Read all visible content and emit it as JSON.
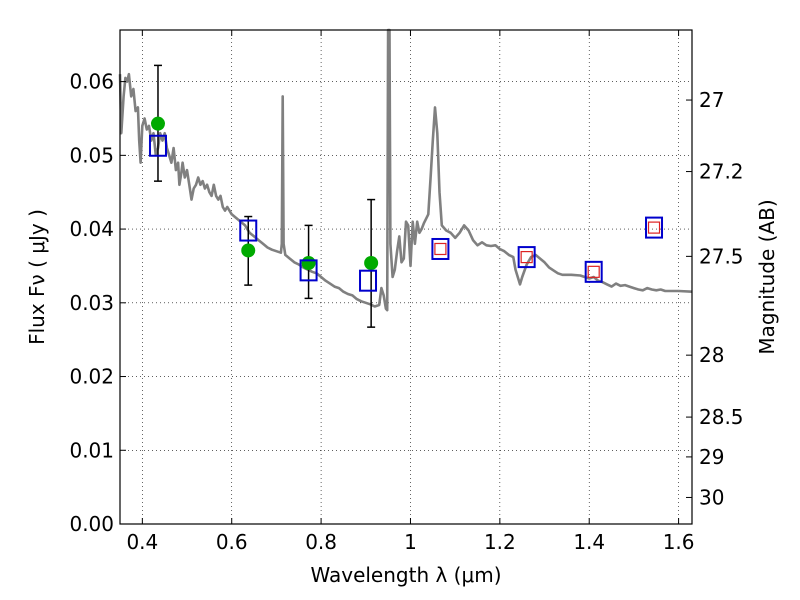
{
  "chart_data": {
    "type": "scatter",
    "xlabel": "Wavelength  λ (μm)",
    "ylabel": "Flux  Fν  ( μJy )",
    "ylabel_right": "Magnitude (AB)",
    "xlim": [
      0.35,
      1.63
    ],
    "ylim": [
      0.0,
      0.067
    ],
    "grid": true,
    "x_ticks": [
      0.4,
      0.6,
      0.8,
      1.0,
      1.2,
      1.4,
      1.6
    ],
    "x_tick_labels": [
      "0.4",
      "0.6",
      "0.8",
      "1",
      "1.2",
      "1.4",
      "1.6"
    ],
    "y_ticks": [
      0.0,
      0.01,
      0.02,
      0.03,
      0.04,
      0.05,
      0.06
    ],
    "y_tick_labels": [
      "0.00",
      "0.01",
      "0.02",
      "0.03",
      "0.04",
      "0.05",
      "0.06"
    ],
    "right_ticks": [
      {
        "label": "27",
        "flux": 0.0575
      },
      {
        "label": "27.2",
        "flux": 0.0478
      },
      {
        "label": "27.5",
        "flux": 0.0363
      },
      {
        "label": "28",
        "flux": 0.0229
      },
      {
        "label": "28.5",
        "flux": 0.0145
      },
      {
        "label": "29",
        "flux": 0.0091
      },
      {
        "label": "30",
        "flux": 0.0036
      }
    ],
    "series": [
      {
        "kind": "model_spectrum",
        "color": "#808080",
        "points": [
          [
            0.35,
            0.061
          ],
          [
            0.353,
            0.053
          ],
          [
            0.358,
            0.058
          ],
          [
            0.362,
            0.0605
          ],
          [
            0.366,
            0.06
          ],
          [
            0.37,
            0.061
          ],
          [
            0.375,
            0.058
          ],
          [
            0.38,
            0.059
          ],
          [
            0.385,
            0.056
          ],
          [
            0.39,
            0.0565
          ],
          [
            0.393,
            0.052
          ],
          [
            0.396,
            0.049
          ],
          [
            0.4,
            0.054
          ],
          [
            0.405,
            0.055
          ],
          [
            0.41,
            0.0535
          ],
          [
            0.415,
            0.054
          ],
          [
            0.42,
            0.052
          ],
          [
            0.425,
            0.053
          ],
          [
            0.43,
            0.05
          ],
          [
            0.435,
            0.051
          ],
          [
            0.44,
            0.053
          ],
          [
            0.445,
            0.052
          ],
          [
            0.45,
            0.053
          ],
          [
            0.455,
            0.051
          ],
          [
            0.46,
            0.05
          ],
          [
            0.465,
            0.049
          ],
          [
            0.47,
            0.051
          ],
          [
            0.475,
            0.048
          ],
          [
            0.48,
            0.049
          ],
          [
            0.483,
            0.046
          ],
          [
            0.487,
            0.0475
          ],
          [
            0.49,
            0.049
          ],
          [
            0.495,
            0.047
          ],
          [
            0.5,
            0.048
          ],
          [
            0.505,
            0.046
          ],
          [
            0.51,
            0.044
          ],
          [
            0.515,
            0.0455
          ],
          [
            0.52,
            0.046
          ],
          [
            0.525,
            0.047
          ],
          [
            0.53,
            0.046
          ],
          [
            0.535,
            0.0465
          ],
          [
            0.54,
            0.0455
          ],
          [
            0.545,
            0.046
          ],
          [
            0.55,
            0.045
          ],
          [
            0.555,
            0.0445
          ],
          [
            0.56,
            0.046
          ],
          [
            0.565,
            0.0445
          ],
          [
            0.57,
            0.044
          ],
          [
            0.575,
            0.0445
          ],
          [
            0.58,
            0.043
          ],
          [
            0.585,
            0.0425
          ],
          [
            0.59,
            0.043
          ],
          [
            0.6,
            0.042
          ],
          [
            0.61,
            0.0415
          ],
          [
            0.62,
            0.041
          ],
          [
            0.63,
            0.0405
          ],
          [
            0.64,
            0.0395
          ],
          [
            0.65,
            0.039
          ],
          [
            0.66,
            0.0385
          ],
          [
            0.67,
            0.038
          ],
          [
            0.68,
            0.0375
          ],
          [
            0.69,
            0.0372
          ],
          [
            0.7,
            0.037
          ],
          [
            0.71,
            0.0368
          ],
          [
            0.712,
            0.038
          ],
          [
            0.714,
            0.058
          ],
          [
            0.716,
            0.038
          ],
          [
            0.72,
            0.0365
          ],
          [
            0.73,
            0.036
          ],
          [
            0.74,
            0.0355
          ],
          [
            0.75,
            0.0352
          ],
          [
            0.76,
            0.0348
          ],
          [
            0.77,
            0.0345
          ],
          [
            0.78,
            0.0342
          ],
          [
            0.79,
            0.034
          ],
          [
            0.8,
            0.0335
          ],
          [
            0.81,
            0.033
          ],
          [
            0.82,
            0.0326
          ],
          [
            0.83,
            0.0322
          ],
          [
            0.84,
            0.032
          ],
          [
            0.85,
            0.0315
          ],
          [
            0.86,
            0.0312
          ],
          [
            0.87,
            0.031
          ],
          [
            0.88,
            0.0305
          ],
          [
            0.89,
            0.0302
          ],
          [
            0.9,
            0.03
          ],
          [
            0.91,
            0.0298
          ],
          [
            0.92,
            0.0295
          ],
          [
            0.93,
            0.0297
          ],
          [
            0.935,
            0.032
          ],
          [
            0.94,
            0.031
          ],
          [
            0.945,
            0.0292
          ],
          [
            0.948,
            0.029
          ],
          [
            0.95,
            0.0675
          ],
          [
            0.953,
            0.0675
          ],
          [
            0.955,
            0.038
          ],
          [
            0.96,
            0.0335
          ],
          [
            0.965,
            0.0345
          ],
          [
            0.97,
            0.037
          ],
          [
            0.975,
            0.039
          ],
          [
            0.98,
            0.0355
          ],
          [
            0.985,
            0.036
          ],
          [
            0.99,
            0.041
          ],
          [
            0.995,
            0.0405
          ],
          [
            1.0,
            0.035
          ],
          [
            1.005,
            0.041
          ],
          [
            1.01,
            0.038
          ],
          [
            1.015,
            0.041
          ],
          [
            1.02,
            0.0395
          ],
          [
            1.025,
            0.04
          ],
          [
            1.03,
            0.0408
          ],
          [
            1.04,
            0.042
          ],
          [
            1.045,
            0.047
          ],
          [
            1.05,
            0.052
          ],
          [
            1.055,
            0.0565
          ],
          [
            1.06,
            0.053
          ],
          [
            1.065,
            0.045
          ],
          [
            1.07,
            0.0405
          ],
          [
            1.08,
            0.0398
          ],
          [
            1.09,
            0.0395
          ],
          [
            1.1,
            0.0388
          ],
          [
            1.11,
            0.0395
          ],
          [
            1.12,
            0.0405
          ],
          [
            1.13,
            0.0398
          ],
          [
            1.14,
            0.0385
          ],
          [
            1.15,
            0.0378
          ],
          [
            1.16,
            0.0382
          ],
          [
            1.17,
            0.0378
          ],
          [
            1.18,
            0.0377
          ],
          [
            1.19,
            0.0378
          ],
          [
            1.2,
            0.0373
          ],
          [
            1.21,
            0.037
          ],
          [
            1.22,
            0.0365
          ],
          [
            1.23,
            0.0362
          ],
          [
            1.235,
            0.0345
          ],
          [
            1.245,
            0.0325
          ],
          [
            1.25,
            0.0335
          ],
          [
            1.26,
            0.0352
          ],
          [
            1.27,
            0.0362
          ],
          [
            1.28,
            0.0365
          ],
          [
            1.29,
            0.036
          ],
          [
            1.3,
            0.0355
          ],
          [
            1.31,
            0.0348
          ],
          [
            1.32,
            0.0344
          ],
          [
            1.33,
            0.034
          ],
          [
            1.34,
            0.0338
          ],
          [
            1.36,
            0.0338
          ],
          [
            1.38,
            0.0337
          ],
          [
            1.4,
            0.0333
          ],
          [
            1.41,
            0.0335
          ],
          [
            1.42,
            0.033
          ],
          [
            1.43,
            0.0328
          ],
          [
            1.44,
            0.0325
          ],
          [
            1.45,
            0.0322
          ],
          [
            1.46,
            0.0326
          ],
          [
            1.47,
            0.0323
          ],
          [
            1.48,
            0.0324
          ],
          [
            1.49,
            0.0322
          ],
          [
            1.5,
            0.032
          ],
          [
            1.51,
            0.0318
          ],
          [
            1.52,
            0.0317
          ],
          [
            1.53,
            0.032
          ],
          [
            1.54,
            0.0318
          ],
          [
            1.55,
            0.0317
          ],
          [
            1.56,
            0.0318
          ],
          [
            1.57,
            0.0316
          ],
          [
            1.58,
            0.0316
          ],
          [
            1.6,
            0.0316
          ],
          [
            1.63,
            0.0315
          ]
        ]
      },
      {
        "kind": "observed_with_errors",
        "color": "#00aa00",
        "points": [
          {
            "x": 0.435,
            "y": 0.0543,
            "err_low": 0.0465,
            "err_high": 0.0622
          },
          {
            "x": 0.637,
            "y": 0.0371,
            "err_low": 0.0324,
            "err_high": 0.0417
          },
          {
            "x": 0.772,
            "y": 0.0354,
            "err_low": 0.0306,
            "err_high": 0.0405
          },
          {
            "x": 0.912,
            "y": 0.0354,
            "err_low": 0.0267,
            "err_high": 0.044
          }
        ]
      },
      {
        "kind": "model_photometry_blue_squares",
        "color": "#0000cc",
        "points": [
          {
            "x": 0.435,
            "y": 0.0513
          },
          {
            "x": 0.637,
            "y": 0.0398
          },
          {
            "x": 0.772,
            "y": 0.0344
          },
          {
            "x": 0.905,
            "y": 0.033
          },
          {
            "x": 1.067,
            "y": 0.0373
          },
          {
            "x": 1.26,
            "y": 0.0362
          },
          {
            "x": 1.41,
            "y": 0.0342
          },
          {
            "x": 1.545,
            "y": 0.0402
          }
        ]
      },
      {
        "kind": "model_photometry_red_squares",
        "color": "#dd2222",
        "points": [
          {
            "x": 1.067,
            "y": 0.0373
          },
          {
            "x": 1.26,
            "y": 0.0362
          },
          {
            "x": 1.41,
            "y": 0.0342
          },
          {
            "x": 1.545,
            "y": 0.0402
          }
        ]
      }
    ]
  }
}
